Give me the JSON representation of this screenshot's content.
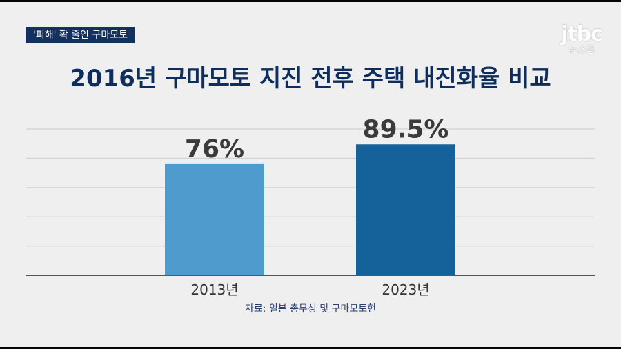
{
  "header": {
    "tag_label": "'피해' 확 줄인 구마모토",
    "logo_main": "jtbc",
    "logo_sub": "뉴스룸"
  },
  "chart_data": {
    "type": "bar",
    "title": "2016년 구마모토 지진 전후 주택 내진화율 비교",
    "categories": [
      "2013년",
      "2023년"
    ],
    "values": [
      76,
      89.5
    ],
    "value_labels": [
      "76%",
      "89.5%"
    ],
    "unit": "%",
    "ylim": [
      0,
      100
    ],
    "grid": true,
    "colors": [
      "#4f9bce",
      "#156199"
    ],
    "source": "자료: 일본 총무성 및 구마모토현"
  }
}
